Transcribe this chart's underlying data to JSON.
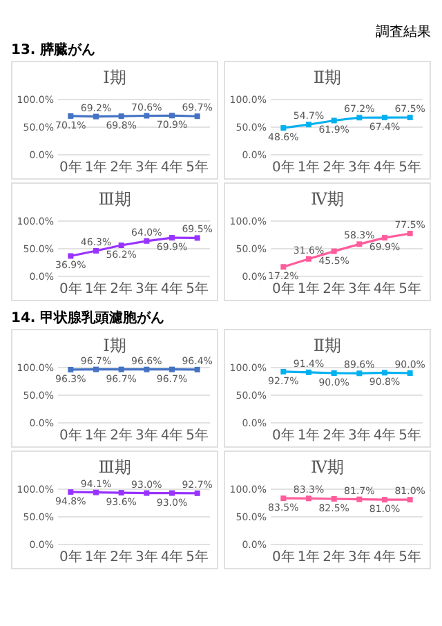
{
  "chart_data": [
    {
      "type": "line",
      "title": "Ⅰ期",
      "annotations": [
        "調査結果",
        "13. 膵臓がん"
      ],
      "categories": [
        "0年",
        "1年",
        "2年",
        "3年",
        "4年",
        "5年"
      ],
      "values": [
        70.1,
        69.2,
        69.8,
        70.6,
        70.9,
        69.7
      ],
      "value_labels": [
        "70.1%",
        "69.2%",
        "69.8%",
        "70.6%",
        "70.9%",
        "69.7%"
      ],
      "color": "#4472c4",
      "marker": "square",
      "grid": "y",
      "ylim": [
        0,
        100
      ],
      "yticks": [
        {
          "value": 0,
          "label": "0.0%"
        },
        {
          "value": 50,
          "label": "50.0%"
        },
        {
          "value": 100,
          "label": "100.0%"
        }
      ]
    },
    {
      "type": "line",
      "title": "Ⅱ期",
      "categories": [
        "0年",
        "1年",
        "2年",
        "3年",
        "4年",
        "5年"
      ],
      "values": [
        48.6,
        54.7,
        61.9,
        67.2,
        67.4,
        67.5
      ],
      "value_labels": [
        "48.6%",
        "54.7%",
        "61.9%",
        "67.2%",
        "67.4%",
        "67.5%"
      ],
      "color": "#00b0f0",
      "marker": "square",
      "grid": "y",
      "ylim": [
        0,
        100
      ],
      "yticks": [
        {
          "value": 0,
          "label": "0.0%"
        },
        {
          "value": 50,
          "label": "50.0%"
        },
        {
          "value": 100,
          "label": "100.0%"
        }
      ]
    },
    {
      "type": "line",
      "title": "Ⅲ期",
      "categories": [
        "0年",
        "1年",
        "2年",
        "3年",
        "4年",
        "5年"
      ],
      "values": [
        36.9,
        46.3,
        56.2,
        64.0,
        69.9,
        69.5
      ],
      "value_labels": [
        "36.9%",
        "46.3%",
        "56.2%",
        "64.0%",
        "69.9%",
        "69.5%"
      ],
      "color": "#9933ff",
      "marker": "square",
      "grid": "y",
      "ylim": [
        0,
        100
      ],
      "yticks": [
        {
          "value": 0,
          "label": "0.0%"
        },
        {
          "value": 50,
          "label": "50.0%"
        },
        {
          "value": 100,
          "label": "100.0%"
        }
      ]
    },
    {
      "type": "line",
      "title": "Ⅳ期",
      "categories": [
        "0年",
        "1年",
        "2年",
        "3年",
        "4年",
        "5年"
      ],
      "values": [
        17.2,
        31.6,
        45.5,
        58.3,
        69.9,
        77.5
      ],
      "value_labels": [
        "17.2%",
        "31.6%",
        "45.5%",
        "58.3%",
        "69.9%",
        "77.5%"
      ],
      "color": "#ff5c9b",
      "marker": "square",
      "grid": "y",
      "ylim": [
        0,
        100
      ],
      "yticks": [
        {
          "value": 0,
          "label": "0.0%"
        },
        {
          "value": 50,
          "label": "50.0%"
        },
        {
          "value": 100,
          "label": "100.0%"
        }
      ]
    },
    {
      "type": "line",
      "title": "Ⅰ期",
      "annotations": [
        "14. 甲状腺乳頭濾胞がん"
      ],
      "categories": [
        "0年",
        "1年",
        "2年",
        "3年",
        "4年",
        "5年"
      ],
      "values": [
        96.3,
        96.7,
        96.7,
        96.6,
        96.7,
        96.4
      ],
      "value_labels": [
        "96.3%",
        "96.7%",
        "96.7%",
        "96.6%",
        "96.7%",
        "96.4%"
      ],
      "color": "#4472c4",
      "marker": "square",
      "grid": "y",
      "ylim": [
        0,
        100
      ],
      "yticks": [
        {
          "value": 0,
          "label": "0.0%"
        },
        {
          "value": 50,
          "label": "50.0%"
        },
        {
          "value": 100,
          "label": "100.0%"
        }
      ]
    },
    {
      "type": "line",
      "title": "Ⅱ期",
      "categories": [
        "0年",
        "1年",
        "2年",
        "3年",
        "4年",
        "5年"
      ],
      "values": [
        92.7,
        91.4,
        90.0,
        89.6,
        90.8,
        90.0
      ],
      "value_labels": [
        "92.7%",
        "91.4%",
        "90.0%",
        "89.6%",
        "90.8%",
        "90.0%"
      ],
      "color": "#00b0f0",
      "marker": "square",
      "grid": "y",
      "ylim": [
        0,
        100
      ],
      "yticks": [
        {
          "value": 0,
          "label": "0.0%"
        },
        {
          "value": 50,
          "label": "50.0%"
        },
        {
          "value": 100,
          "label": "100.0%"
        }
      ]
    },
    {
      "type": "line",
      "title": "Ⅲ期",
      "categories": [
        "0年",
        "1年",
        "2年",
        "3年",
        "4年",
        "5年"
      ],
      "values": [
        94.8,
        94.1,
        93.6,
        93.0,
        93.0,
        92.7
      ],
      "value_labels": [
        "94.8%",
        "94.1%",
        "93.6%",
        "93.0%",
        "93.0%",
        "92.7%"
      ],
      "color": "#9933ff",
      "marker": "square",
      "grid": "y",
      "ylim": [
        0,
        100
      ],
      "yticks": [
        {
          "value": 0,
          "label": "0.0%"
        },
        {
          "value": 50,
          "label": "50.0%"
        },
        {
          "value": 100,
          "label": "100.0%"
        }
      ]
    },
    {
      "type": "line",
      "title": "Ⅳ期",
      "categories": [
        "0年",
        "1年",
        "2年",
        "3年",
        "4年",
        "5年"
      ],
      "values": [
        83.5,
        83.3,
        82.5,
        81.7,
        81.0,
        81.0
      ],
      "value_labels": [
        "83.5%",
        "83.3%",
        "82.5%",
        "81.7%",
        "81.0%",
        "81.0%"
      ],
      "color": "#ff5c9b",
      "marker": "square",
      "grid": "y",
      "ylim": [
        0,
        100
      ],
      "yticks": [
        {
          "value": 0,
          "label": "0.0%"
        },
        {
          "value": 50,
          "label": "50.0%"
        },
        {
          "value": 100,
          "label": "100.0%"
        }
      ]
    }
  ]
}
